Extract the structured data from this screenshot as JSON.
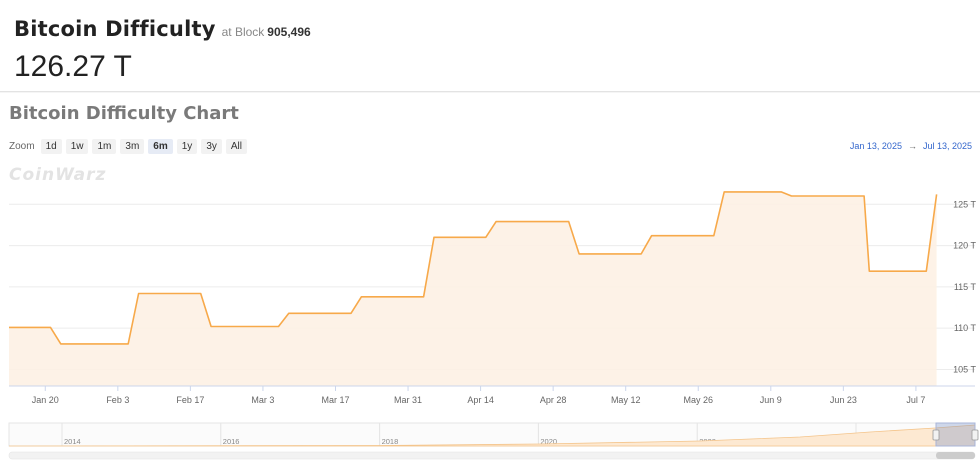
{
  "header": {
    "title": "Bitcoin Difficulty",
    "at_block_label": "at Block",
    "block_number": "905,496",
    "difficulty_value": "126.27 T"
  },
  "chart": {
    "heading": "Bitcoin Difficulty Chart",
    "zoom_label": "Zoom",
    "zoom_buttons": [
      "1d",
      "1w",
      "1m",
      "3m",
      "6m",
      "1y",
      "3y",
      "All"
    ],
    "active_zoom": "6m",
    "range_from": "Jan 13, 2025",
    "range_arrow": "→",
    "range_to": "Jul 13, 2025",
    "watermark": "CoinWarz",
    "line_color": "#f7a94a",
    "fill_color": "#fdf1e4"
  },
  "chart_data": {
    "type": "area",
    "title": "Bitcoin Difficulty Chart",
    "xlabel": "",
    "ylabel": "",
    "y_unit": "T",
    "ylim": [
      103,
      130
    ],
    "x_tick_labels": [
      "Jan 20",
      "Feb 3",
      "Feb 17",
      "Mar 3",
      "Mar 17",
      "Mar 31",
      "Apr 14",
      "Apr 28",
      "May 12",
      "May 26",
      "Jun 9",
      "Jun 23",
      "Jul 7"
    ],
    "y_tick_labels": [
      "105 T",
      "110 T",
      "115 T",
      "120 T",
      "125 T"
    ],
    "y_ticks": [
      105,
      110,
      115,
      120,
      125
    ],
    "series": [
      {
        "points": [
          [
            "2025-01-13",
            110.1
          ],
          [
            "2025-01-21",
            110.1
          ],
          [
            "2025-01-23",
            108.1
          ],
          [
            "2025-02-05",
            108.1
          ],
          [
            "2025-02-07",
            114.2
          ],
          [
            "2025-02-19",
            114.2
          ],
          [
            "2025-02-21",
            110.2
          ],
          [
            "2025-03-06",
            110.2
          ],
          [
            "2025-03-08",
            111.8
          ],
          [
            "2025-03-20",
            111.8
          ],
          [
            "2025-03-22",
            113.8
          ],
          [
            "2025-04-03",
            113.8
          ],
          [
            "2025-04-05",
            121.0
          ],
          [
            "2025-04-15",
            121.0
          ],
          [
            "2025-04-17",
            122.9
          ],
          [
            "2025-05-01",
            122.9
          ],
          [
            "2025-05-03",
            119.0
          ],
          [
            "2025-05-15",
            119.0
          ],
          [
            "2025-05-17",
            121.2
          ],
          [
            "2025-05-29",
            121.2
          ],
          [
            "2025-05-31",
            126.5
          ],
          [
            "2025-06-11",
            126.5
          ],
          [
            "2025-06-13",
            126.0
          ],
          [
            "2025-06-27",
            126.0
          ],
          [
            "2025-06-28",
            116.9
          ],
          [
            "2025-07-09",
            116.9
          ],
          [
            "2025-07-11",
            126.2
          ]
        ]
      }
    ],
    "navigator": {
      "x_tick_labels": [
        "2014",
        "2016",
        "2018",
        "2020",
        "2022",
        "2024"
      ]
    },
    "grid": true,
    "legend": "none"
  }
}
